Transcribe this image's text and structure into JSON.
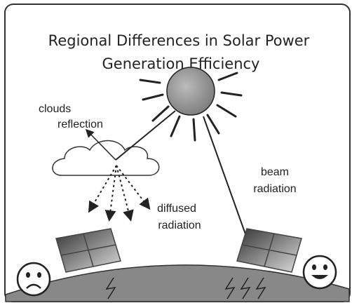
{
  "title": [
    "Regional Differences in Solar Power",
    "Generation Efficiency"
  ],
  "labels": {
    "clouds_reflection": [
      "clouds",
      "reflection"
    ],
    "beam_radiation": [
      "beam",
      "radiation"
    ],
    "diffused_radiation": [
      "diffused",
      "radiation"
    ]
  }
}
